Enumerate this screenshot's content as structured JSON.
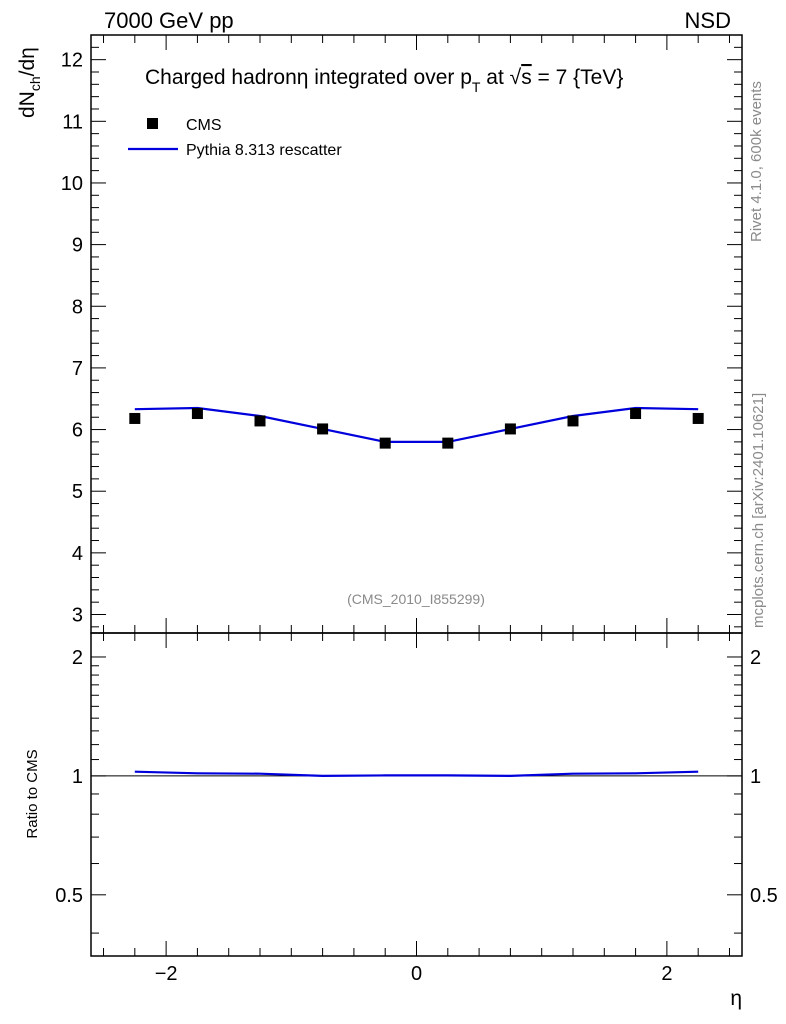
{
  "header": {
    "left": "7000 GeV pp",
    "right": "NSD"
  },
  "side_labels": {
    "rivet": "Rivet 4.1.0,  600k events",
    "mcplots": "mcplots.cern.ch [arXiv:2401.10621]"
  },
  "watermark": "(CMS_2010_I855299)",
  "chart_data": {
    "type": "line",
    "title": "Charged hadronη integrated over p_T at √s = 7 {TeV}",
    "title_parts": {
      "a": "Charged hadron",
      "eta": "η",
      "b": " integrated over p",
      "sub": "T",
      "c": " at ",
      "sqrt": "√",
      "s": "s",
      "d": " = 7 {TeV}"
    },
    "xlabel": "η",
    "ylabel": "dN_ch/dη",
    "ylabel_parts": {
      "a": "dN",
      "sub": "ch",
      "b": "/dη"
    },
    "ratio_ylabel": "Ratio to CMS",
    "xlim": [
      -2.6,
      2.6
    ],
    "ylim": [
      2.7,
      12.4
    ],
    "ratio_ylim": [
      0.35,
      2.3
    ],
    "x_ticks": [
      -2,
      0,
      2
    ],
    "x_tick_labels": [
      "−2",
      "0",
      "2"
    ],
    "y_ticks": [
      3,
      4,
      5,
      6,
      7,
      8,
      9,
      10,
      11,
      12
    ],
    "y_tick_labels": [
      "3",
      "4",
      "5",
      "6",
      "7",
      "8",
      "9",
      "10",
      "11",
      "12"
    ],
    "ratio_y_ticks": [
      0.5,
      1,
      2
    ],
    "ratio_y_tick_labels": [
      "0.5",
      "1",
      "2"
    ],
    "legend_position": "top-left",
    "series": [
      {
        "name": "CMS",
        "kind": "markers",
        "color": "#000000",
        "x": [
          -2.25,
          -1.75,
          -1.25,
          -0.75,
          -0.25,
          0.25,
          0.75,
          1.25,
          1.75,
          2.25
        ],
        "y": [
          6.18,
          6.26,
          6.14,
          6.01,
          5.78,
          5.78,
          6.01,
          6.14,
          6.26,
          6.18
        ]
      },
      {
        "name": "Pythia 8.313 rescatter",
        "kind": "line",
        "color": "#0000dd",
        "x": [
          -2.25,
          -1.75,
          -1.25,
          -0.75,
          -0.25,
          0.25,
          0.75,
          1.25,
          1.75,
          2.25
        ],
        "y": [
          6.33,
          6.35,
          6.22,
          6.01,
          5.8,
          5.8,
          6.01,
          6.22,
          6.35,
          6.33
        ]
      }
    ],
    "ratio_series": {
      "name": "Pythia 8.313 rescatter / CMS",
      "color": "#0000dd",
      "x": [
        -2.25,
        -1.75,
        -1.25,
        -0.75,
        -0.25,
        0.25,
        0.75,
        1.25,
        1.75,
        2.25
      ],
      "y": [
        1.025,
        1.015,
        1.013,
        1.0,
        1.003,
        1.003,
        1.0,
        1.013,
        1.015,
        1.025
      ]
    }
  }
}
